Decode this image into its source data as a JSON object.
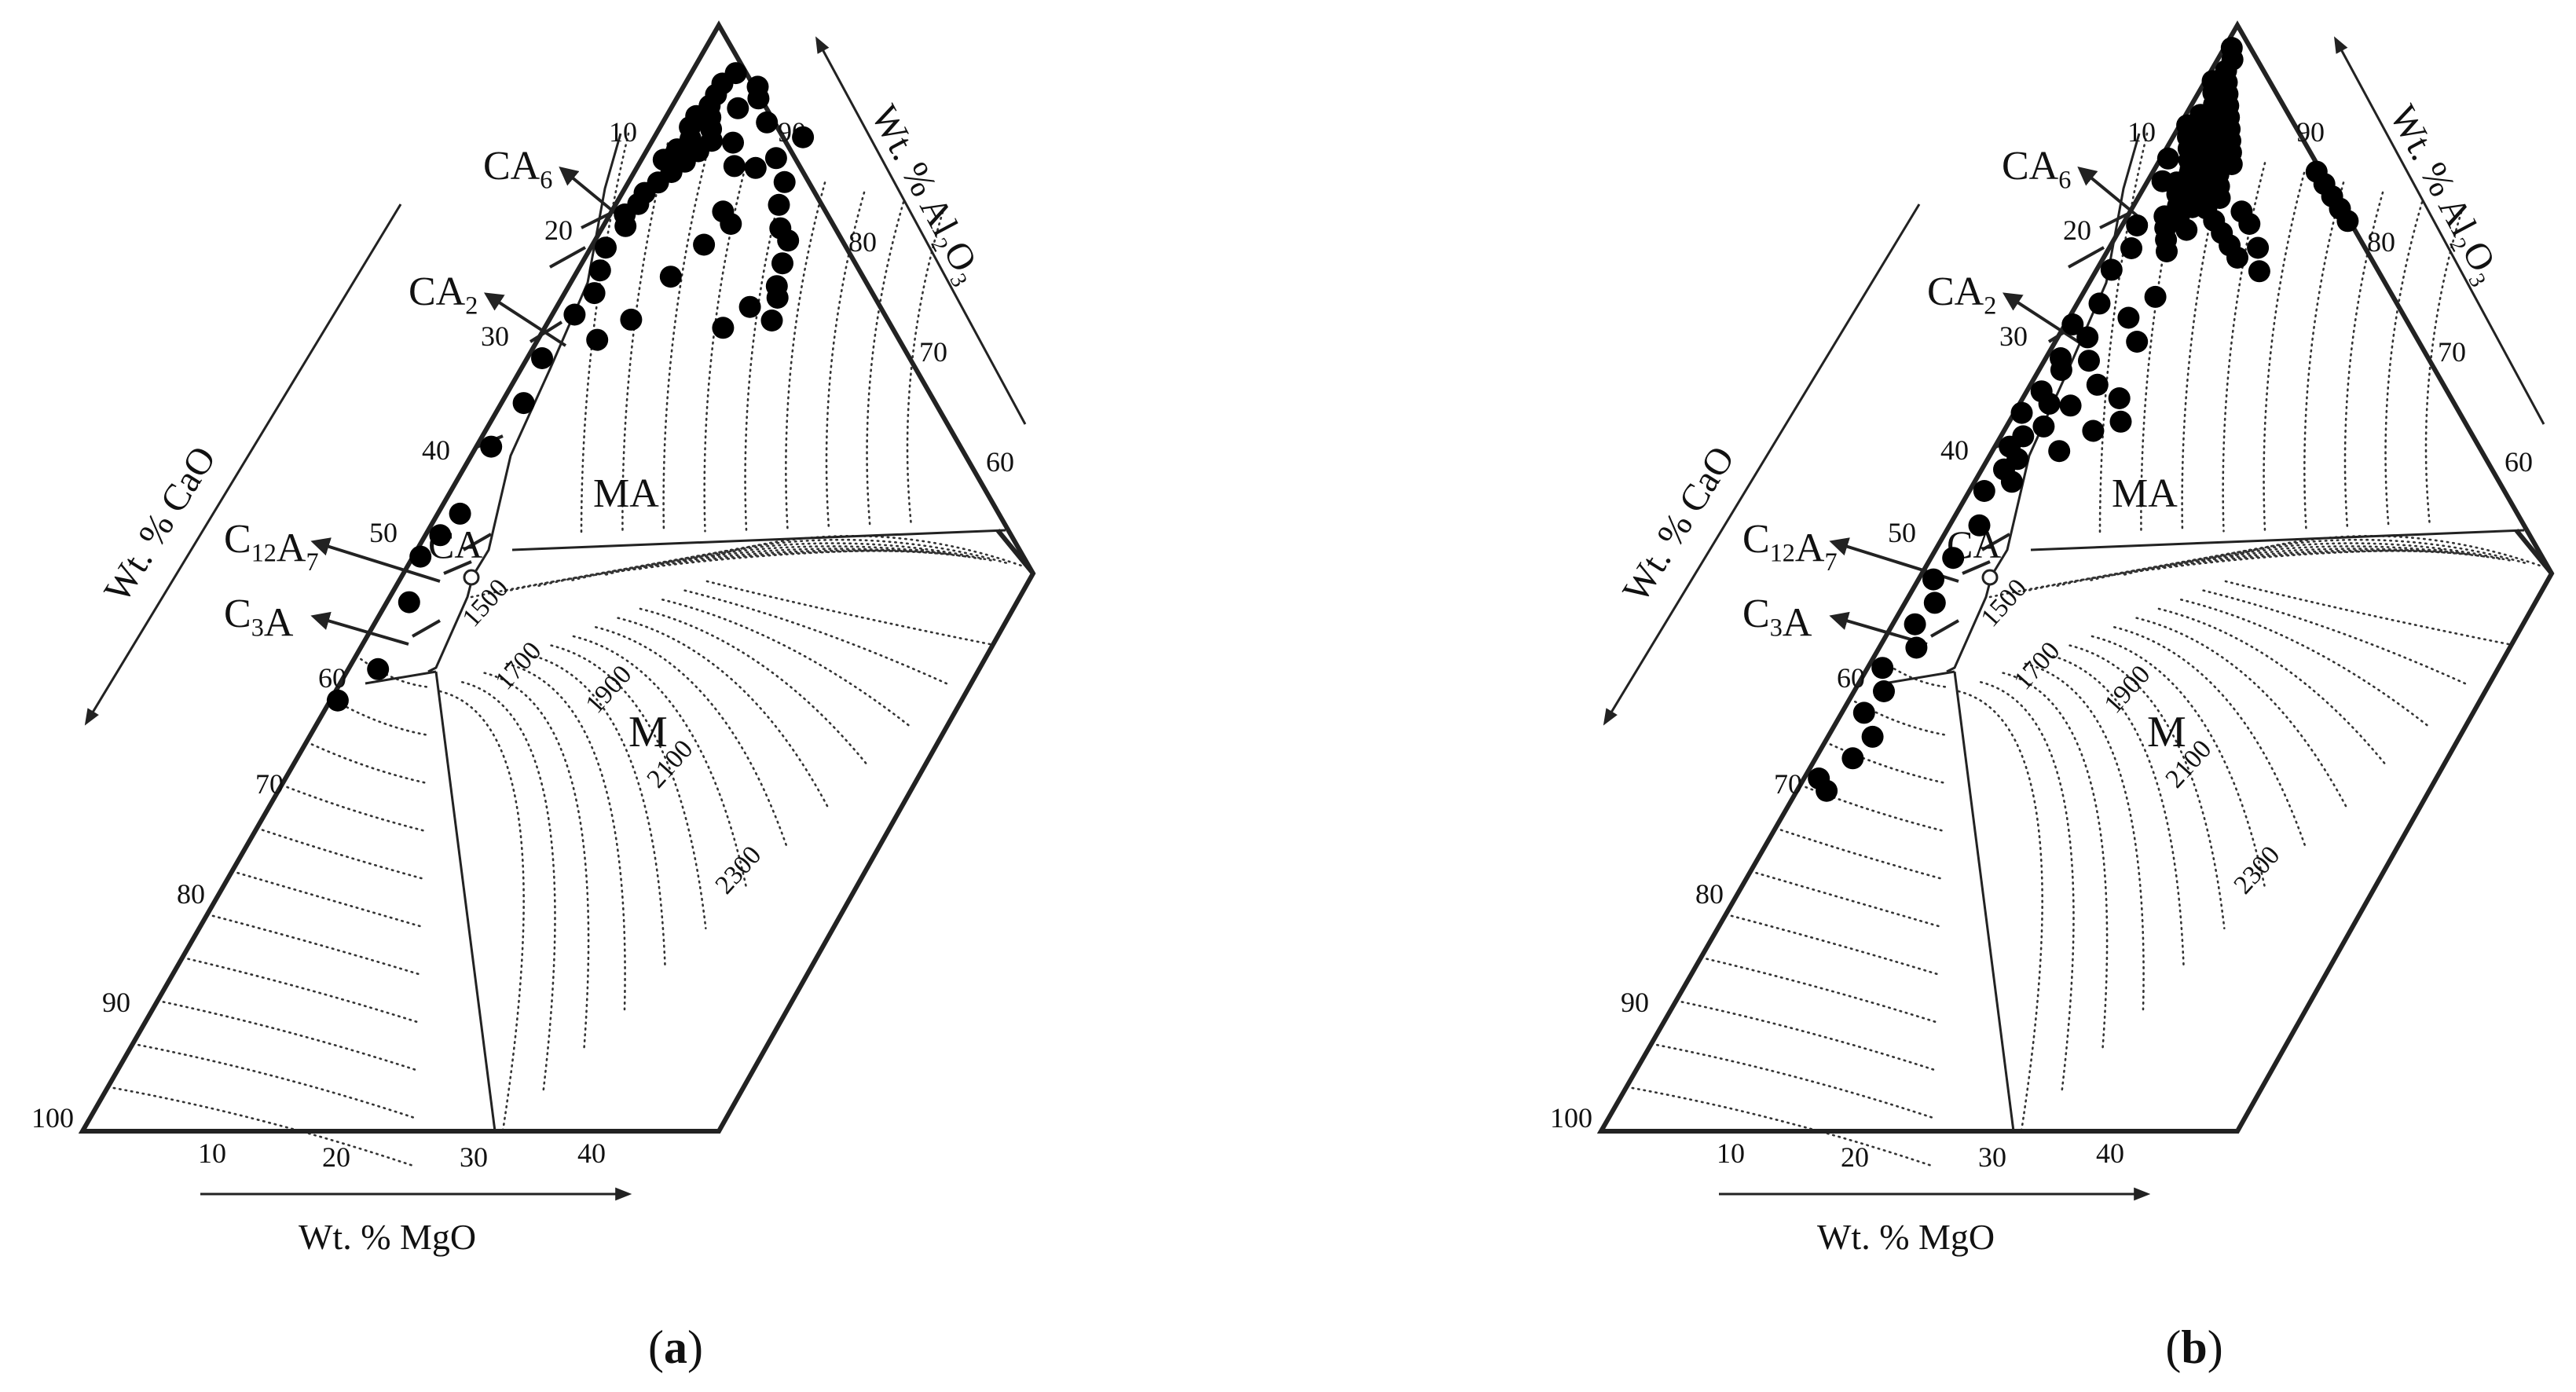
{
  "panels": [
    {
      "id": "a",
      "caption": "(a)",
      "axes": {
        "cao": "Wt. % CaO",
        "al2o3": "Wt. % Al₂O₃",
        "mgo": "Wt. % MgO"
      },
      "cao_ticks": [
        "10",
        "20",
        "30",
        "40",
        "50",
        "60",
        "70",
        "80",
        "90",
        "100"
      ],
      "al2o3_ticks": [
        "90",
        "80",
        "70",
        "60"
      ],
      "mgo_ticks": [
        "10",
        "20",
        "30",
        "40"
      ],
      "phases": {
        "ca6": "CA₆",
        "ca2": "CA₂",
        "c12a7": "C₁₂A₇",
        "c3a": "C₃A",
        "ca": "CA",
        "ma": "MA",
        "m": "M"
      },
      "isotherms": [
        "1500",
        "1700",
        "1900",
        "2100",
        "2300"
      ],
      "points_note": "sample compositions plotted as black dots (wt.% CaO, wt.% MgO)",
      "points": [
        [
          4,
          6
        ],
        [
          5,
          5
        ],
        [
          6,
          5
        ],
        [
          7,
          5
        ],
        [
          8,
          4
        ],
        [
          9,
          4
        ],
        [
          8,
          6
        ],
        [
          10,
          5
        ],
        [
          11,
          4
        ],
        [
          12,
          3
        ],
        [
          9,
          7
        ],
        [
          10,
          8
        ],
        [
          11,
          7
        ],
        [
          12,
          6
        ],
        [
          13,
          5
        ],
        [
          14,
          4
        ],
        [
          15,
          3
        ],
        [
          16,
          3
        ],
        [
          17,
          2
        ],
        [
          18,
          3
        ],
        [
          20,
          2
        ],
        [
          22,
          3
        ],
        [
          24,
          4
        ],
        [
          26,
          3
        ],
        [
          30,
          2
        ],
        [
          34,
          3
        ],
        [
          38,
          2
        ],
        [
          44,
          3
        ],
        [
          46,
          2
        ],
        [
          48,
          1
        ],
        [
          52,
          3
        ],
        [
          58,
          4
        ],
        [
          61,
          1
        ],
        [
          10,
          11
        ],
        [
          12,
          13
        ],
        [
          16,
          15
        ],
        [
          17,
          17
        ],
        [
          19,
          15
        ],
        [
          22,
          13
        ],
        [
          26,
          11
        ],
        [
          8,
          14
        ],
        [
          9,
          20
        ],
        [
          11,
          18
        ],
        [
          13,
          21
        ],
        [
          15,
          22
        ],
        [
          17,
          24
        ],
        [
          18,
          26
        ],
        [
          20,
          27
        ],
        [
          22,
          28
        ],
        [
          23,
          29
        ],
        [
          24,
          26
        ],
        [
          25,
          30
        ],
        [
          26,
          24
        ],
        [
          28,
          8
        ],
        [
          12,
          16
        ],
        [
          7,
          9
        ],
        [
          6,
          11
        ],
        [
          5,
          10
        ]
      ]
    },
    {
      "id": "b",
      "caption": "(b)",
      "axes": {
        "cao": "Wt. % CaO",
        "al2o3": "Wt. % Al₂O₃",
        "mgo": "Wt. % MgO"
      },
      "cao_ticks": [
        "10",
        "20",
        "30",
        "40",
        "50",
        "60",
        "70",
        "80",
        "90",
        "100"
      ],
      "al2o3_ticks": [
        "90",
        "80",
        "70",
        "60"
      ],
      "mgo_ticks": [
        "10",
        "20",
        "30",
        "40"
      ],
      "phases": {
        "ca6": "CA₆",
        "ca2": "CA₂",
        "c12a7": "C₁₂A₇",
        "c3a": "C₃A",
        "ca": "CA",
        "ma": "MA",
        "m": "M"
      },
      "isotherms": [
        "1500",
        "1700",
        "1900",
        "2100",
        "2300"
      ],
      "points_note": "sample compositions plotted as black dots (wt.% CaO, wt.% MgO)",
      "points": [
        [
          2,
          1
        ],
        [
          3,
          2
        ],
        [
          4,
          2
        ],
        [
          5,
          1
        ],
        [
          5,
          3
        ],
        [
          6,
          2
        ],
        [
          6,
          4
        ],
        [
          7,
          3
        ],
        [
          7,
          5
        ],
        [
          8,
          2
        ],
        [
          8,
          4
        ],
        [
          8,
          6
        ],
        [
          9,
          3
        ],
        [
          9,
          5
        ],
        [
          9,
          7
        ],
        [
          10,
          4
        ],
        [
          10,
          6
        ],
        [
          10,
          8
        ],
        [
          11,
          3
        ],
        [
          11,
          5
        ],
        [
          11,
          7
        ],
        [
          11,
          9
        ],
        [
          12,
          4
        ],
        [
          12,
          6
        ],
        [
          12,
          8
        ],
        [
          12,
          10
        ],
        [
          13,
          5
        ],
        [
          13,
          7
        ],
        [
          13,
          9
        ],
        [
          14,
          4
        ],
        [
          14,
          6
        ],
        [
          14,
          8
        ],
        [
          14,
          10
        ],
        [
          15,
          5
        ],
        [
          15,
          7
        ],
        [
          15,
          9
        ],
        [
          15,
          11
        ],
        [
          16,
          6
        ],
        [
          16,
          8
        ],
        [
          16,
          10
        ],
        [
          17,
          5
        ],
        [
          17,
          7
        ],
        [
          17,
          12
        ],
        [
          18,
          6
        ],
        [
          18,
          9
        ],
        [
          18,
          14
        ],
        [
          19,
          7
        ],
        [
          19,
          16
        ],
        [
          20,
          8
        ],
        [
          20,
          18
        ],
        [
          16,
          15
        ],
        [
          17,
          17
        ],
        [
          19,
          20
        ],
        [
          21,
          22
        ],
        [
          9,
          1
        ],
        [
          10,
          2
        ],
        [
          12,
          1
        ],
        [
          14,
          2
        ],
        [
          18,
          2
        ],
        [
          20,
          3
        ],
        [
          22,
          2
        ],
        [
          25,
          3
        ],
        [
          27,
          1
        ],
        [
          28,
          4
        ],
        [
          30,
          2
        ],
        [
          31,
          3
        ],
        [
          33,
          2
        ],
        [
          34,
          4
        ],
        [
          35,
          1
        ],
        [
          36,
          5
        ],
        [
          37,
          3
        ],
        [
          38,
          2
        ],
        [
          39,
          4
        ],
        [
          40,
          3
        ],
        [
          41,
          5
        ],
        [
          42,
          2
        ],
        [
          45,
          4
        ],
        [
          48,
          3
        ],
        [
          50,
          2
        ],
        [
          52,
          4
        ],
        [
          54,
          3
        ],
        [
          56,
          5
        ],
        [
          58,
          2
        ],
        [
          60,
          4
        ],
        [
          62,
          3
        ],
        [
          64,
          6
        ],
        [
          66,
          5
        ],
        [
          68,
          2
        ],
        [
          69,
          4
        ],
        [
          24,
          10
        ],
        [
          26,
          8
        ],
        [
          28,
          11
        ],
        [
          30,
          6
        ],
        [
          32,
          9
        ],
        [
          34,
          7
        ],
        [
          36,
          12
        ],
        [
          38,
          9
        ],
        [
          33,
          13
        ],
        [
          35,
          15
        ],
        [
          12,
          22
        ],
        [
          13,
          24
        ],
        [
          14,
          26
        ],
        [
          15,
          28
        ],
        [
          16,
          30
        ]
      ]
    }
  ]
}
